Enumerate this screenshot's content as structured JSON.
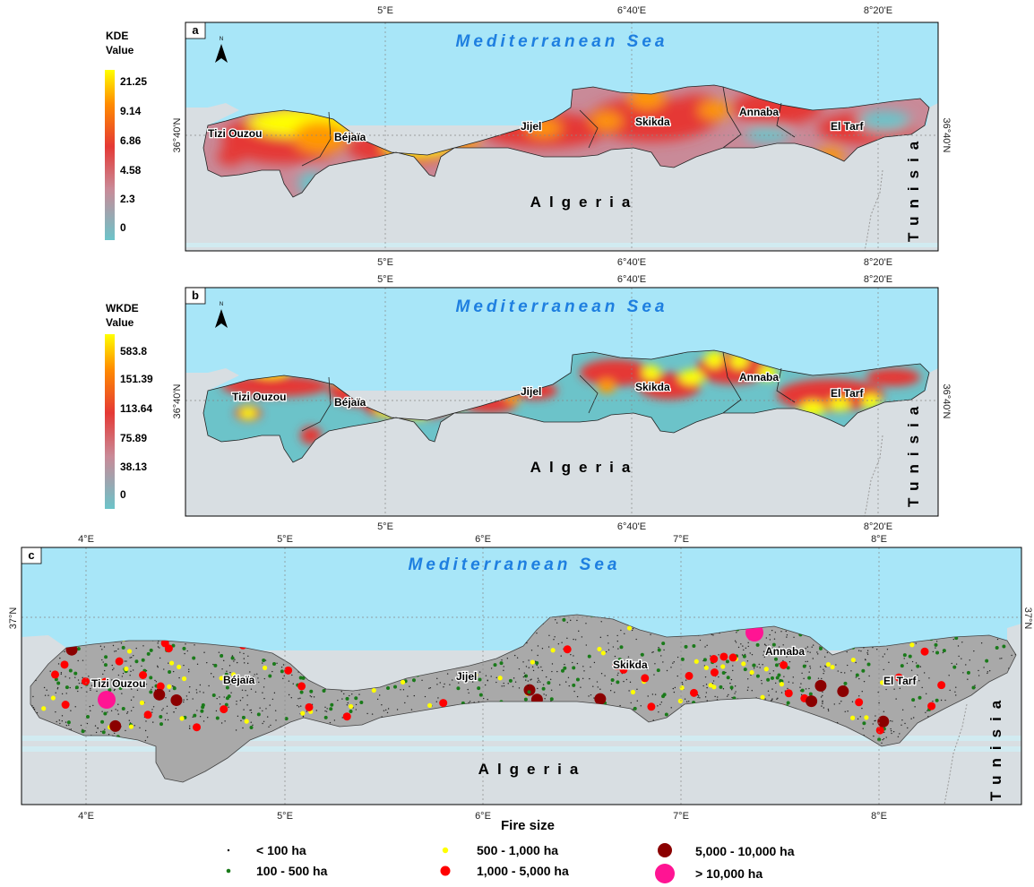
{
  "panels": [
    {
      "letter": "a",
      "legend_title_1": "KDE",
      "legend_title_2": "Value",
      "legend_values": [
        "21.25",
        "9.14",
        "6.86",
        "4.58",
        "2.3",
        "0"
      ],
      "ticks_top": [
        "5°E",
        "6°40'E",
        "8°20'E"
      ],
      "ticks_bottom": [
        "5°E",
        "6°40'E",
        "8°20'E"
      ],
      "lat_label": "36°40'N",
      "sea": "Mediterranean Sea",
      "country": "Algeria",
      "neighbor": "Tunisia",
      "provinces": [
        "Tizi Ouzou",
        "Béjaïa",
        "Jijel",
        "Skikda",
        "Annaba",
        "El Tarf"
      ]
    },
    {
      "letter": "b",
      "legend_title_1": "WKDE",
      "legend_title_2": "Value",
      "legend_values": [
        "583.8",
        "151.39",
        "113.64",
        "75.89",
        "38.13",
        "0"
      ],
      "ticks_top": [
        "5°E",
        "6°40'E",
        "8°20'E"
      ],
      "ticks_bottom": [
        "5°E",
        "6°40'E",
        "8°20'E"
      ],
      "lat_label": "36°40'N",
      "sea": "Mediterranean Sea",
      "country": "Algeria",
      "neighbor": "Tunisia",
      "provinces": [
        "Tizi Ouzou",
        "Béjaïa",
        "Jijel",
        "Skikda",
        "Annaba",
        "El Tarf"
      ]
    },
    {
      "letter": "c",
      "ticks_top": [
        "4°E",
        "5°E",
        "6°E",
        "7°E",
        "8°E"
      ],
      "ticks_bottom": [
        "4°E",
        "5°E",
        "6°E",
        "7°E",
        "8°E"
      ],
      "lat_label": "37°N",
      "sea": "Mediterranean Sea",
      "country": "Algeria",
      "neighbor": "Tunisia",
      "provinces": [
        "Tizi Ouzou",
        "Béjaïa",
        "Jijel",
        "Skikda",
        "Annaba",
        "El Tarf"
      ]
    }
  ],
  "north_arrow_label": "N",
  "fire_legend": {
    "title": "Fire size",
    "items": [
      {
        "label": "< 100 ha",
        "color": "#000000"
      },
      {
        "label": "100 - 500 ha",
        "color": "#1a7a1a"
      },
      {
        "label": "500 - 1,000 ha",
        "color": "#ffff00"
      },
      {
        "label": "1,000 - 5,000 ha",
        "color": "#ff0000"
      },
      {
        "label": "5,000 - 10,000 ha",
        "color": "#8b0000"
      },
      {
        "label": "> 10,000 ha",
        "color": "#ff1493"
      }
    ]
  },
  "colors": {
    "sea": "#a8e6f8",
    "land": "#d8dee2",
    "kde_high": "#ffff00",
    "kde_mid": "#e53935",
    "kde_low": "#6cc3c9",
    "fire_region": "#a9a9a9",
    "sea_label": "#1e7fe0"
  }
}
